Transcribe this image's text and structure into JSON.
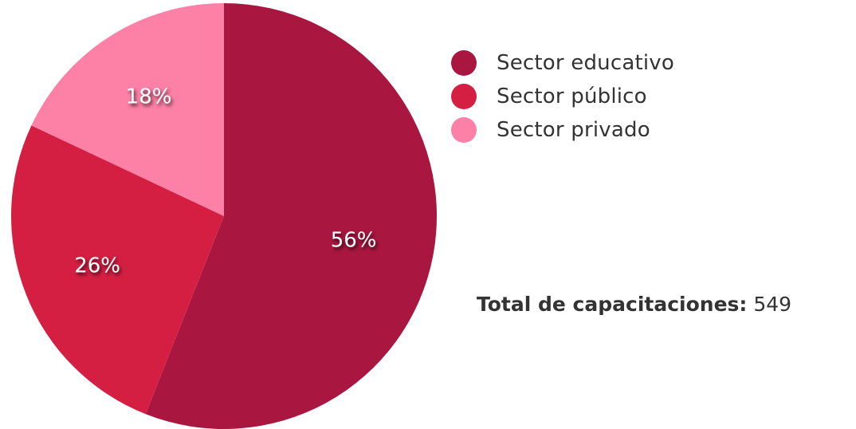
{
  "chart_data": {
    "type": "pie",
    "categories": [
      "Sector educativo",
      "Sector público",
      "Sector privado"
    ],
    "values": [
      56,
      26,
      18
    ],
    "value_labels": [
      "56%",
      "26%",
      "18%"
    ],
    "colors": [
      "#a91640",
      "#d41f43",
      "#fd80a6"
    ],
    "title": "",
    "legend_position": "right"
  },
  "summary": {
    "label": "Total de capacitaciones:",
    "value": "549"
  }
}
